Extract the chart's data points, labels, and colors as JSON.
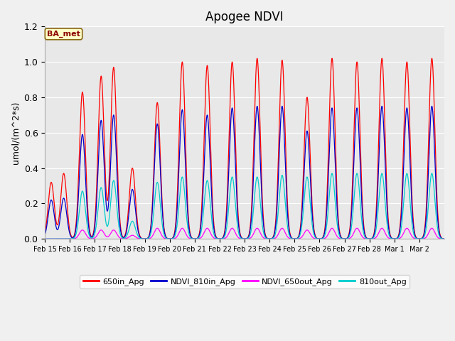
{
  "title": "Apogee NDVI",
  "ylabel_display": "umol/(m^2*s)",
  "background_color": "#f0f0f0",
  "plot_bg_color": "#e8e8e8",
  "annotation_text": "BA_met",
  "annotation_bg": "#ffffc8",
  "annotation_border": "#8b6914",
  "annotation_text_color": "#8b0000",
  "colors": {
    "650in_Apg": "#ff0000",
    "NDVI_810in_Apg": "#0000cc",
    "NDVI_650out_Apg": "#ff00ff",
    "810out_Apg": "#00cccc"
  },
  "ylim": [
    0,
    1.2
  ],
  "tick_labels": [
    "Feb 15",
    "Feb 16",
    "Feb 17",
    "Feb 18",
    "Feb 19",
    "Feb 20",
    "Feb 21",
    "Feb 22",
    "Feb 23",
    "Feb 24",
    "Feb 25",
    "Feb 26",
    "Feb 27",
    "Feb 28",
    "Mar 1",
    "Mar 2"
  ],
  "peak_times": [
    0.25,
    0.75,
    1.5,
    2.25,
    2.75,
    3.5,
    4.5,
    5.5,
    6.5,
    7.5,
    8.5,
    9.5,
    10.5,
    11.5,
    12.5,
    13.5,
    14.5,
    15.5
  ],
  "peak_heights_red": [
    0.32,
    0.37,
    0.83,
    0.92,
    0.97,
    0.4,
    0.77,
    1.0,
    0.98,
    1.0,
    1.02,
    1.01,
    0.8,
    1.02,
    1.0,
    1.02,
    1.0,
    1.02
  ],
  "peak_heights_blue": [
    0.22,
    0.23,
    0.59,
    0.67,
    0.7,
    0.28,
    0.65,
    0.73,
    0.7,
    0.74,
    0.75,
    0.75,
    0.61,
    0.74,
    0.74,
    0.75,
    0.74,
    0.75
  ],
  "peak_heights_magenta": [
    0.0,
    0.0,
    0.05,
    0.05,
    0.05,
    0.02,
    0.06,
    0.06,
    0.06,
    0.06,
    0.06,
    0.06,
    0.05,
    0.06,
    0.06,
    0.06,
    0.06,
    0.06
  ],
  "peak_heights_cyan": [
    0.0,
    0.0,
    0.27,
    0.29,
    0.33,
    0.1,
    0.32,
    0.35,
    0.33,
    0.35,
    0.35,
    0.36,
    0.35,
    0.37,
    0.37,
    0.37,
    0.37,
    0.37
  ]
}
